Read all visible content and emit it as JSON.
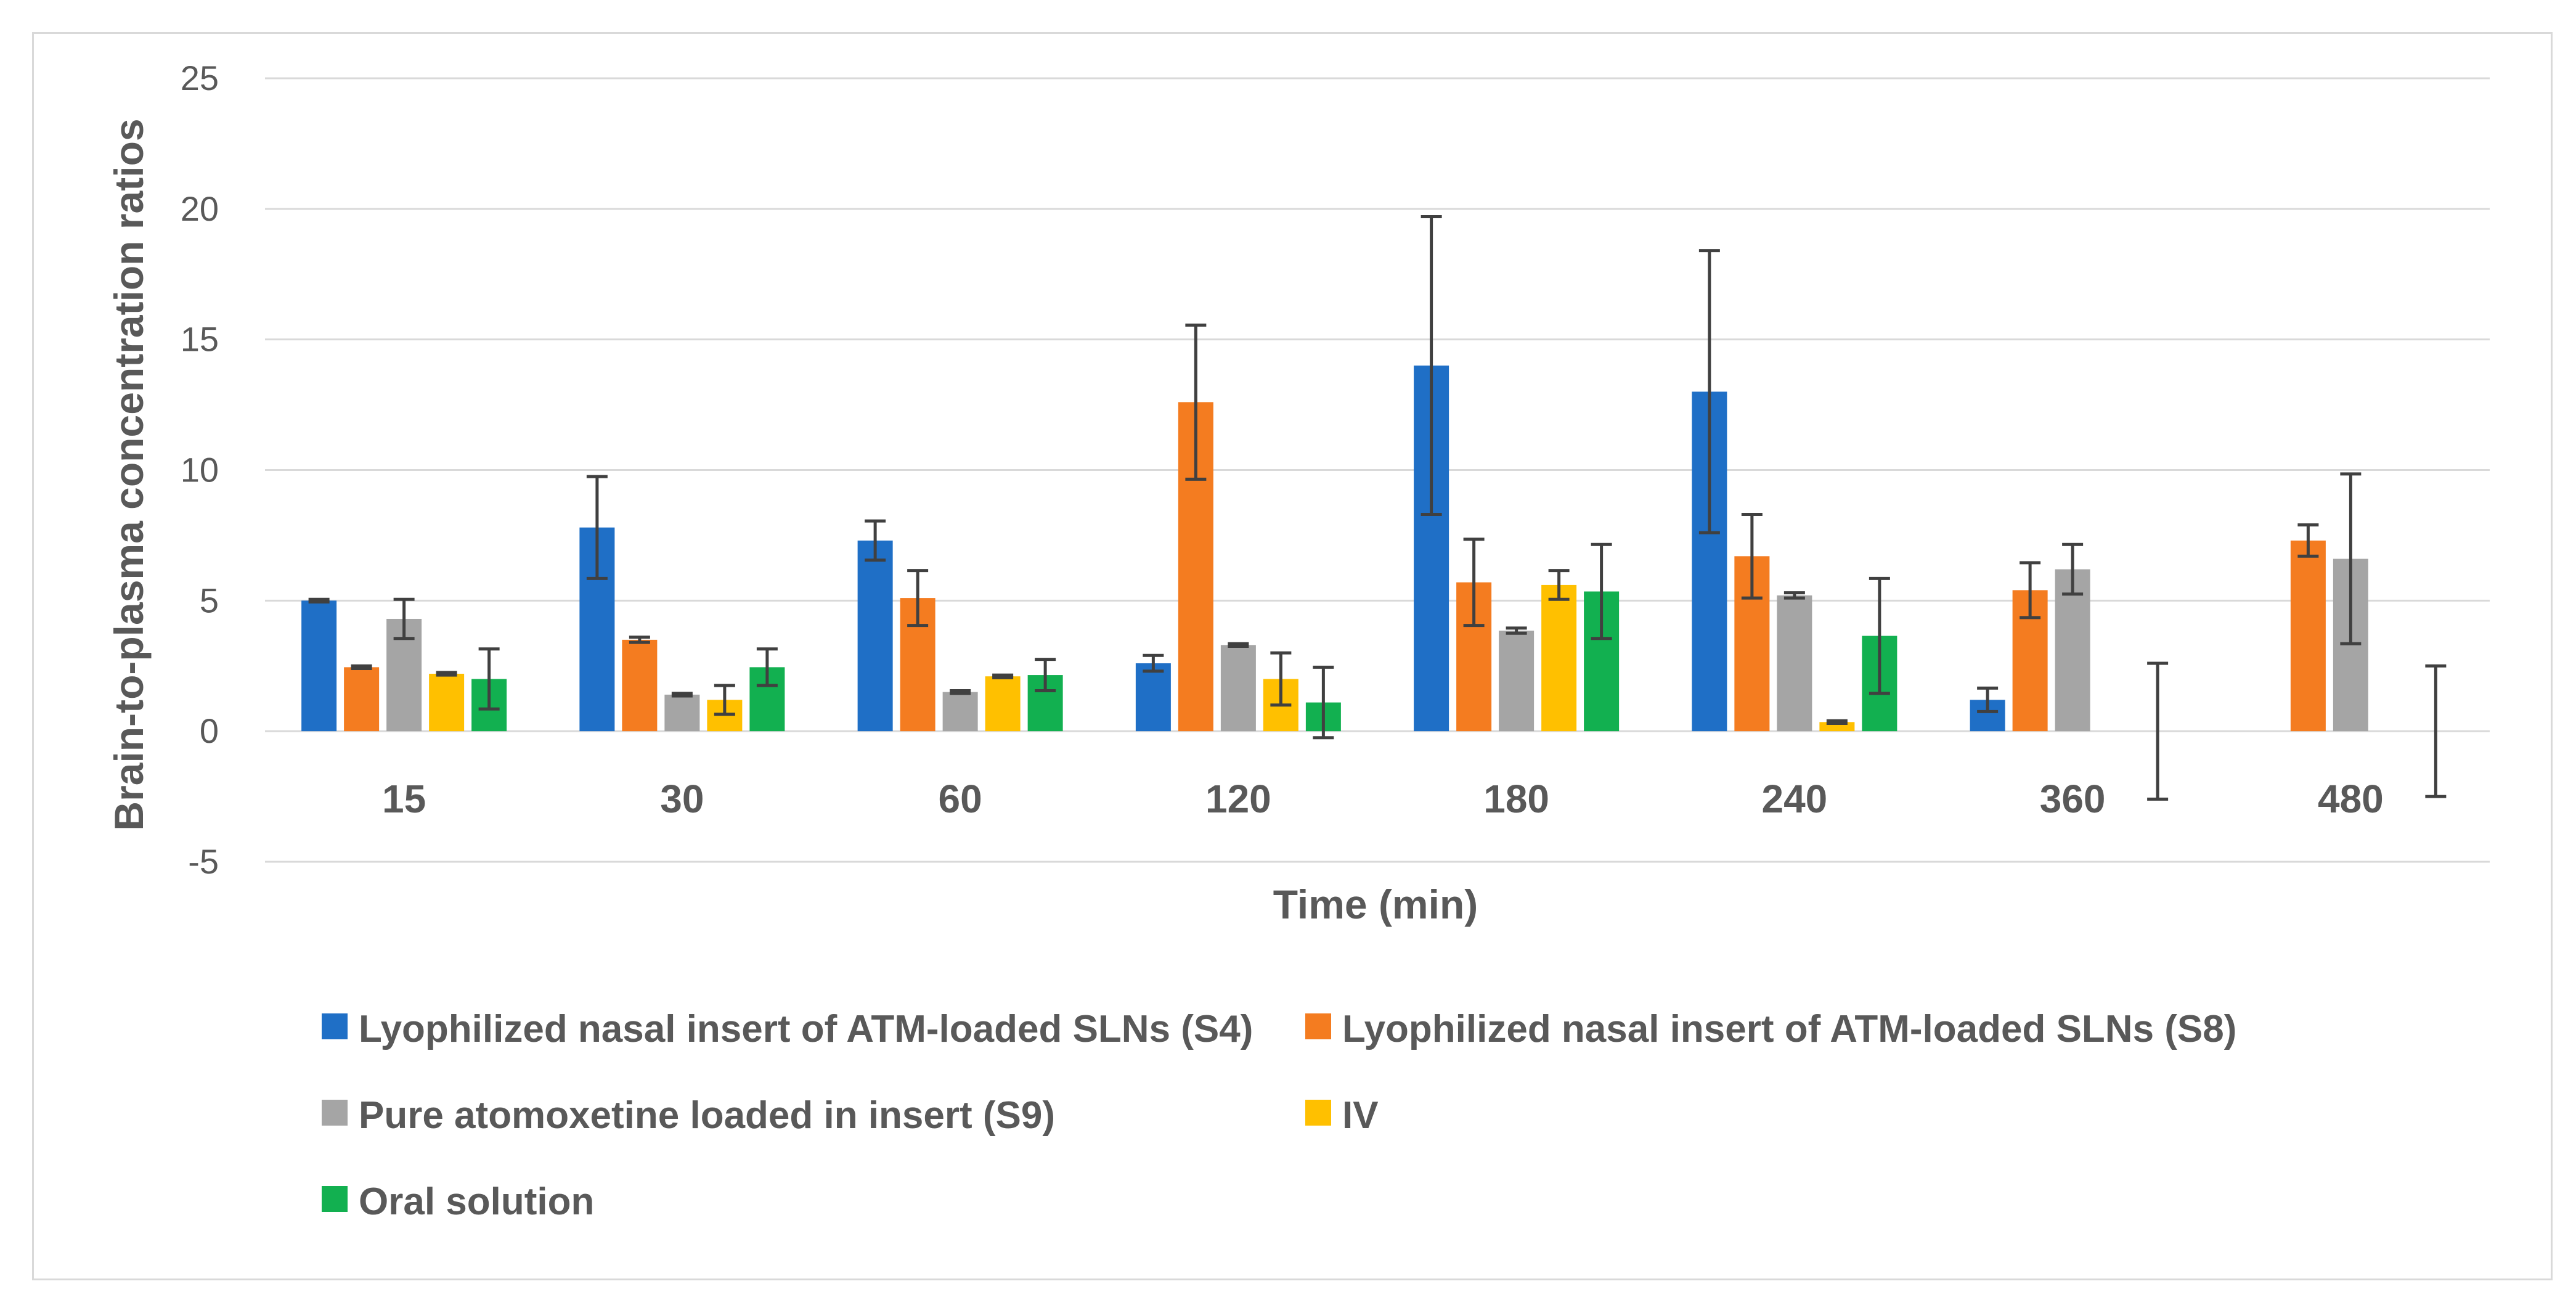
{
  "chart_data": {
    "type": "bar",
    "title": "",
    "xlabel": "Time (min)",
    "ylabel": "Brain-to-plasma concentration ratios",
    "categories": [
      "15",
      "30",
      "60",
      "120",
      "180",
      "240",
      "360",
      "480"
    ],
    "yticks": [
      "25",
      "20",
      "15",
      "10",
      "5",
      "0",
      "-5"
    ],
    "ylim": [
      -5,
      25
    ],
    "grid": true,
    "legend_position": "bottom",
    "series": [
      {
        "name": "Lyophilized nasal insert of ATM-loaded SLNs (S4)",
        "color": "#1f6fc6",
        "values": [
          5.0,
          7.8,
          7.3,
          2.6,
          14.0,
          13.0,
          1.2,
          0
        ],
        "errors": [
          0.05,
          1.95,
          0.75,
          0.3,
          5.7,
          5.4,
          0.45,
          0
        ]
      },
      {
        "name": "Lyophilized nasal insert of ATM-loaded SLNs (S8)",
        "color": "#f47c20",
        "values": [
          2.45,
          3.5,
          5.1,
          12.6,
          5.7,
          6.7,
          5.4,
          7.3
        ],
        "errors": [
          0.05,
          0.1,
          1.05,
          2.95,
          1.65,
          1.6,
          1.05,
          0.6
        ]
      },
      {
        "name": "Pure atomoxetine loaded in insert (S9)",
        "color": "#a5a5a5",
        "values": [
          4.3,
          1.4,
          1.5,
          3.3,
          3.85,
          5.2,
          6.2,
          6.6
        ],
        "errors": [
          0.75,
          0.05,
          0.05,
          0.05,
          0.1,
          0.1,
          0.95,
          3.25
        ]
      },
      {
        "name": "IV",
        "color": "#ffc000",
        "values": [
          2.2,
          1.2,
          2.1,
          2.0,
          5.6,
          0.35,
          0,
          0
        ],
        "errors": [
          0.05,
          0.55,
          0.05,
          1.0,
          0.55,
          0.05,
          0,
          0
        ]
      },
      {
        "name": "Oral solution",
        "color": "#12b050",
        "values": [
          2.0,
          2.45,
          2.15,
          1.1,
          5.35,
          3.65,
          0,
          0
        ],
        "errors": [
          1.15,
          0.7,
          0.6,
          1.35,
          1.8,
          2.2,
          2.6,
          2.5
        ]
      }
    ]
  }
}
